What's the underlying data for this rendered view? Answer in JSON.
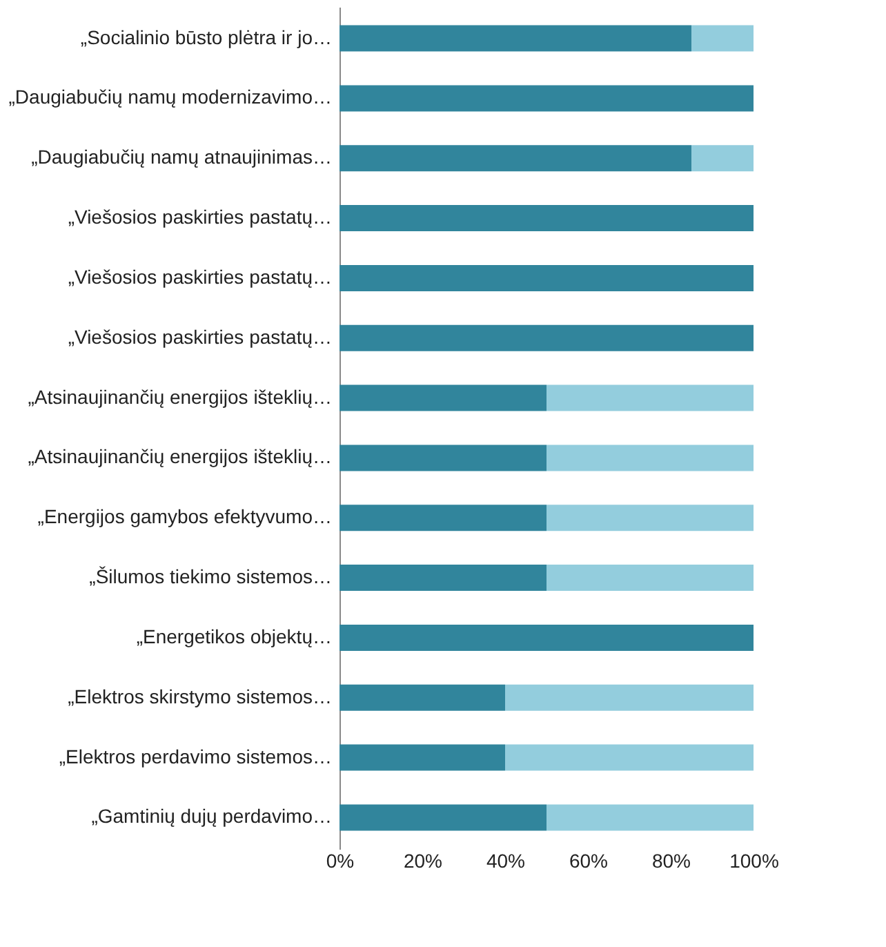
{
  "chart_data": {
    "type": "bar",
    "orientation": "horizontal",
    "stacked": true,
    "categories": [
      "„Socialinio būsto plėtra ir jo…",
      "„Daugiabučių namų modernizavimo…",
      "„Daugiabučių namų atnaujinimas…",
      "„Viešosios paskirties pastatų…",
      "„Viešosios paskirties pastatų…",
      "„Viešosios paskirties pastatų…",
      "„Atsinaujinančių energijos išteklių…",
      "„Atsinaujinančių energijos išteklių…",
      "„Energijos gamybos efektyvumo…",
      "„Šilumos tiekimo sistemos…",
      "„Energetikos objektų…",
      "„Elektros skirstymo sistemos…",
      "„Elektros perdavimo sistemos…",
      "„Gamtinių dujų perdavimo…"
    ],
    "series": [
      {
        "color": "#31859c",
        "values": [
          85,
          100,
          85,
          100,
          100,
          100,
          50,
          50,
          50,
          50,
          100,
          40,
          40,
          50
        ]
      },
      {
        "color": "#93cddd",
        "values": [
          15,
          0,
          15,
          0,
          0,
          0,
          50,
          50,
          50,
          50,
          0,
          60,
          60,
          50
        ]
      }
    ],
    "xlim": [
      0,
      100
    ],
    "xticks": [
      {
        "value": 0,
        "label": "0%"
      },
      {
        "value": 20,
        "label": "20%"
      },
      {
        "value": 40,
        "label": "40%"
      },
      {
        "value": 60,
        "label": "60%"
      },
      {
        "value": 80,
        "label": "80%"
      },
      {
        "value": 100,
        "label": "100%"
      }
    ],
    "grid": false,
    "legend": false
  }
}
